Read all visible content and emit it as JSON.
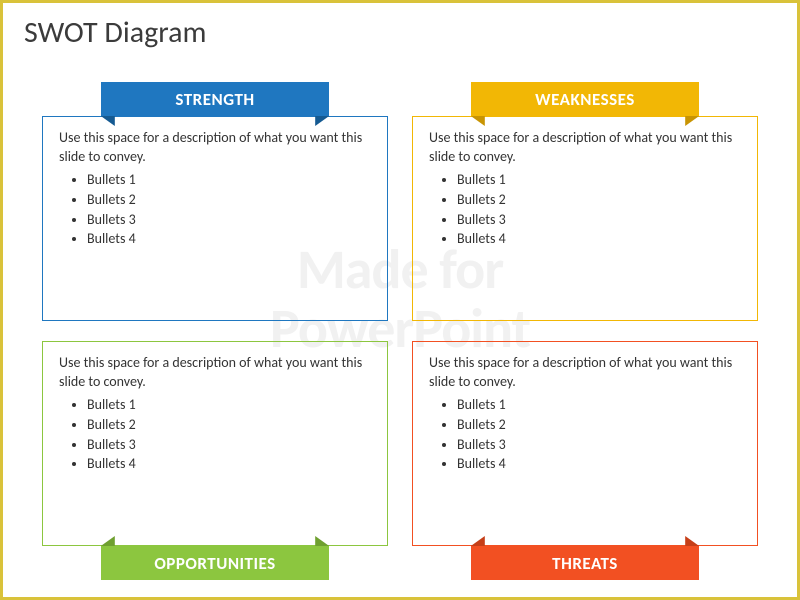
{
  "slide": {
    "title": "SWOT Diagram",
    "title_color": "#3b3b3b",
    "title_fontsize": 30,
    "frame_color": "#d9c23a",
    "background": "#ffffff"
  },
  "watermark": {
    "line1": "Made for",
    "line2": "PowerPoint",
    "color": "#f1f1f1",
    "fontsize": 56
  },
  "quadrants": [
    {
      "id": "strength",
      "label": "STRENGTH",
      "position": "top",
      "color": "#1f77c0",
      "ear_color": "#155a92",
      "label_fontsize": 17,
      "description": "Use this space for a description of what you want this slide to convey.",
      "bullets": [
        "Bullets 1",
        "Bullets 2",
        "Bullets 3",
        "Bullets 4"
      ]
    },
    {
      "id": "weaknesses",
      "label": "WEAKNESSES",
      "position": "top",
      "color": "#f2b705",
      "ear_color": "#c89403",
      "label_fontsize": 17,
      "description": "Use this space for a description of what you want this slide to convey.",
      "bullets": [
        "Bullets 1",
        "Bullets 2",
        "Bullets 3",
        "Bullets 4"
      ]
    },
    {
      "id": "opportunities",
      "label": "OPPORTUNITIES",
      "position": "bottom",
      "color": "#8cc63f",
      "ear_color": "#6fa030",
      "label_fontsize": 17,
      "description": "Use this space for a description of what you want this slide to convey.",
      "bullets": [
        "Bullets 1",
        "Bullets 2",
        "Bullets 3",
        "Bullets 4"
      ]
    },
    {
      "id": "threats",
      "label": "THREATS",
      "position": "bottom",
      "color": "#f25022",
      "ear_color": "#c63f18",
      "label_fontsize": 17,
      "description": "Use this space for a description of what you want this slide to convey.",
      "bullets": [
        "Bullets 1",
        "Bullets 2",
        "Bullets 3",
        "Bullets 4"
      ]
    }
  ],
  "body_text_color": "#333333",
  "body_fontsize": 14
}
